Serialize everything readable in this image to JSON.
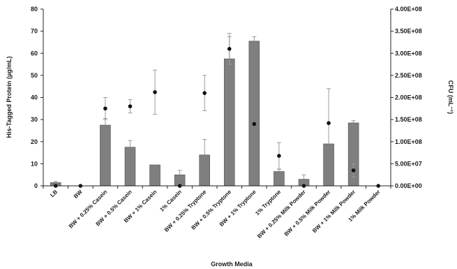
{
  "chart_data": {
    "type": "bar",
    "xlabel": "Growth Media",
    "ylabel": "His-Tagged Protein (µg/mL)",
    "y2label": "CFU (mL⁻¹)",
    "ylim": [
      0,
      80
    ],
    "y2lim": [
      0,
      400000000
    ],
    "yticks": [
      "0",
      "10",
      "20",
      "30",
      "40",
      "50",
      "60",
      "70",
      "80"
    ],
    "y2ticks": [
      "0.00E+00",
      "5.00E+07",
      "1.00E+08",
      "1.50E+08",
      "2.00E+08",
      "2.50E+08",
      "3.00E+08",
      "3.50E+08",
      "4.00E+08"
    ],
    "grid": false,
    "colors": {
      "bar": "#7f7f7f",
      "bar_edge": "#555555",
      "point": "#111111",
      "error_bar": "#9a9a9a",
      "axis": "#222222"
    },
    "categories": [
      "LB",
      "BW",
      "BW + 0.25% Casein",
      "BW + 0.5% Casein",
      "BW + 1% Casein",
      "1% Casein",
      "BW + 0.25% Tryptone",
      "BW + 0.5% Tryptone",
      "BW + 1% Tryptone",
      "1% Tryptone",
      "BW + 0.25% Milk Powder",
      "BW + 0.5% Milk Powder",
      "BW + 1% Milk Powder",
      "1% Milk Powder"
    ],
    "series": [
      {
        "type": "bar",
        "axis": "left",
        "values": [
          1.5,
          0,
          27.5,
          17.5,
          9.5,
          5,
          14,
          57.5,
          65.5,
          6.5,
          3,
          19,
          28.5,
          0
        ],
        "errors": [
          0.5,
          0,
          3,
          3,
          0,
          2,
          7,
          10,
          2,
          1,
          2,
          25,
          1,
          0
        ]
      },
      {
        "type": "scatter",
        "axis": "right",
        "values": [
          0,
          0,
          175000000,
          180000000,
          212000000,
          0,
          210000000,
          310000000,
          140000000,
          68000000,
          0,
          142000000,
          35000000,
          0
        ],
        "errors": [
          0,
          0,
          25000000,
          15000000,
          50000000,
          0,
          40000000,
          35000000,
          0,
          30000000,
          0,
          0,
          15000000,
          0
        ]
      }
    ]
  }
}
